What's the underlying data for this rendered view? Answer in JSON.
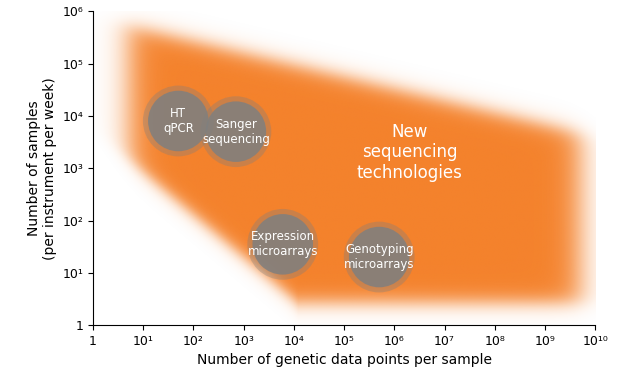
{
  "chart_data": {
    "type": "scatter",
    "x_label": "Number of genetic data points per sample",
    "y_label": "Number of samples\n(per instrument per week)",
    "x": [
      50,
      700,
      6000,
      500000
    ],
    "values": [
      8000,
      5000,
      35,
      20
    ],
    "labels": [
      "HT\nqPCR",
      "Sanger\nsequencing",
      "Expression\nmicroarrays",
      "Genotyping\nmicroarrays"
    ],
    "color": "#7f7f7f",
    "regions": [
      {
        "label": "New\nsequencing\ntechnologies",
        "x": 2000000,
        "y": 2000,
        "color": "#f47b20"
      }
    ],
    "log": true,
    "grid": false,
    "xlim": [
      1,
      10000000000
    ],
    "ylim": [
      1,
      1000000
    ],
    "xticks": [
      1,
      {
        "value": 10,
        "label": "10¹"
      },
      {
        "value": 100,
        "label": "10²"
      },
      {
        "value": 1000,
        "label": "10³"
      },
      {
        "value": 10000,
        "label": "10⁴"
      },
      {
        "value": 100000,
        "label": "10⁵"
      },
      {
        "value": 1000000,
        "label": "10⁶"
      },
      {
        "value": 10000000,
        "label": "10⁷"
      },
      {
        "value": 100000000,
        "label": "10⁸"
      },
      {
        "value": 1000000000,
        "label": "10⁹"
      },
      {
        "value": 10000000000,
        "label": "10¹⁰"
      }
    ],
    "yticks": [
      1,
      {
        "value": 10,
        "label": "10¹"
      },
      {
        "value": 100,
        "label": "10²"
      },
      {
        "value": 1000,
        "label": "10³"
      },
      {
        "value": 10000,
        "label": "10⁴"
      },
      {
        "value": 100000,
        "label": "10⁵"
      },
      {
        "value": 1000000,
        "label": "10⁶"
      }
    ]
  }
}
